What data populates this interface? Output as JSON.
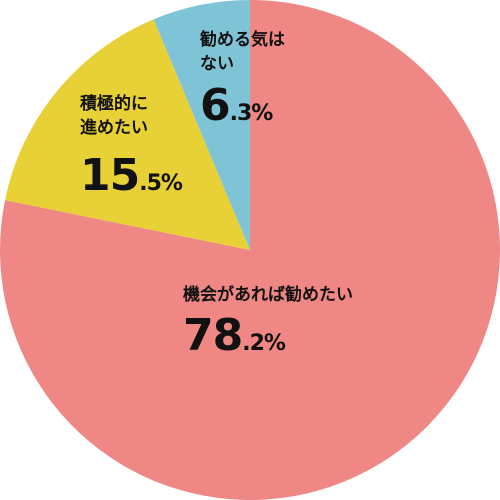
{
  "chart_data": {
    "type": "pie",
    "categories": [
      "機会があれば勧めたい",
      "積極的に\n進めたい",
      "勧める気は\nない"
    ],
    "values": [
      78.2,
      15.5,
      6.3
    ],
    "value_labels": [
      "78.2%",
      "15.5%",
      "6.3%"
    ],
    "colors": [
      "#ef8784",
      "#e8d136",
      "#7ec4d6"
    ],
    "start": "top",
    "direction": "clockwise"
  }
}
